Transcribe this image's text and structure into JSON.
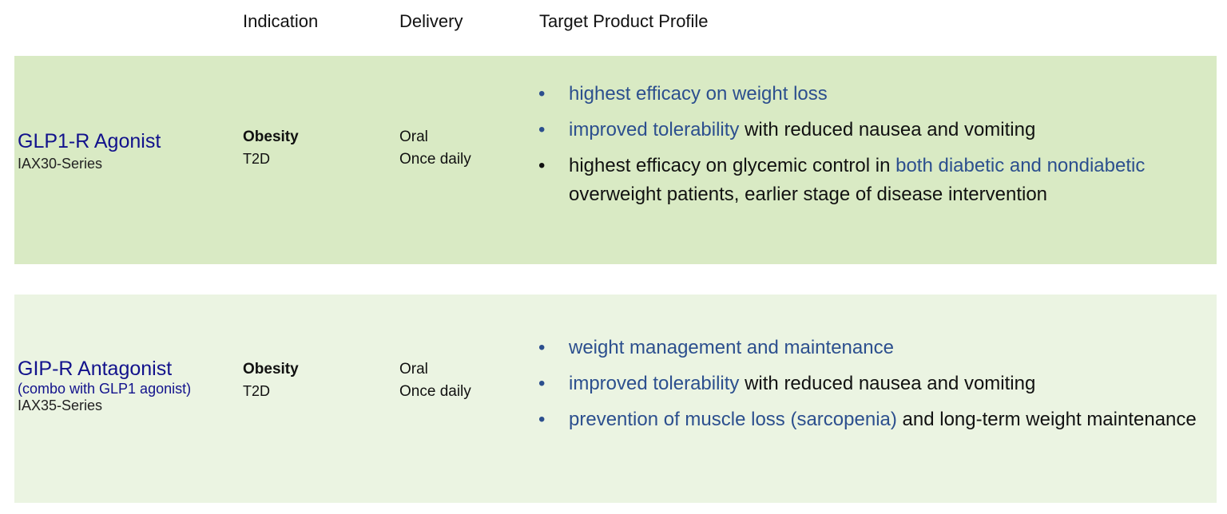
{
  "header": {
    "indication": "Indication",
    "delivery": "Delivery",
    "tpp": "Target Product Profile"
  },
  "rows": [
    {
      "name_main": "GLP1-R Agonist",
      "series": "IAX30-Series",
      "indication_primary": "Obesity",
      "indication_secondary": "T2D",
      "delivery_route": "Oral",
      "delivery_frequency": "Once daily",
      "tpp": [
        {
          "highlight": "highest efficacy on weight loss",
          "rest": ""
        },
        {
          "highlight": "improved tolerability",
          "rest": " with reduced nausea and vomiting"
        },
        {
          "pre": "highest efficacy on glycemic control in ",
          "highlight": "both diabetic and nondiabetic",
          "rest": " overweight patients, earlier stage of disease intervention"
        }
      ]
    },
    {
      "name_strong": "GIP-R",
      "name_rest": " Antagonist",
      "name_sub": "(combo with GLP1 agonist)",
      "series": "IAX35-Series",
      "indication_primary": "Obesity",
      "indication_secondary": "T2D",
      "delivery_route": "Oral",
      "delivery_frequency": "Once daily",
      "tpp": [
        {
          "highlight": "weight management and maintenance",
          "rest": ""
        },
        {
          "highlight": "improved tolerability",
          "rest": " with reduced nausea and vomiting"
        },
        {
          "highlight": "prevention of muscle loss (sarcopenia)",
          "rest": " and long-term weight maintenance"
        }
      ]
    }
  ],
  "colors": {
    "row1_bg": "#d9eac4",
    "row2_bg": "#ebf4e2",
    "name_blue": "#12128c",
    "highlight_blue": "#2c4f8e"
  }
}
